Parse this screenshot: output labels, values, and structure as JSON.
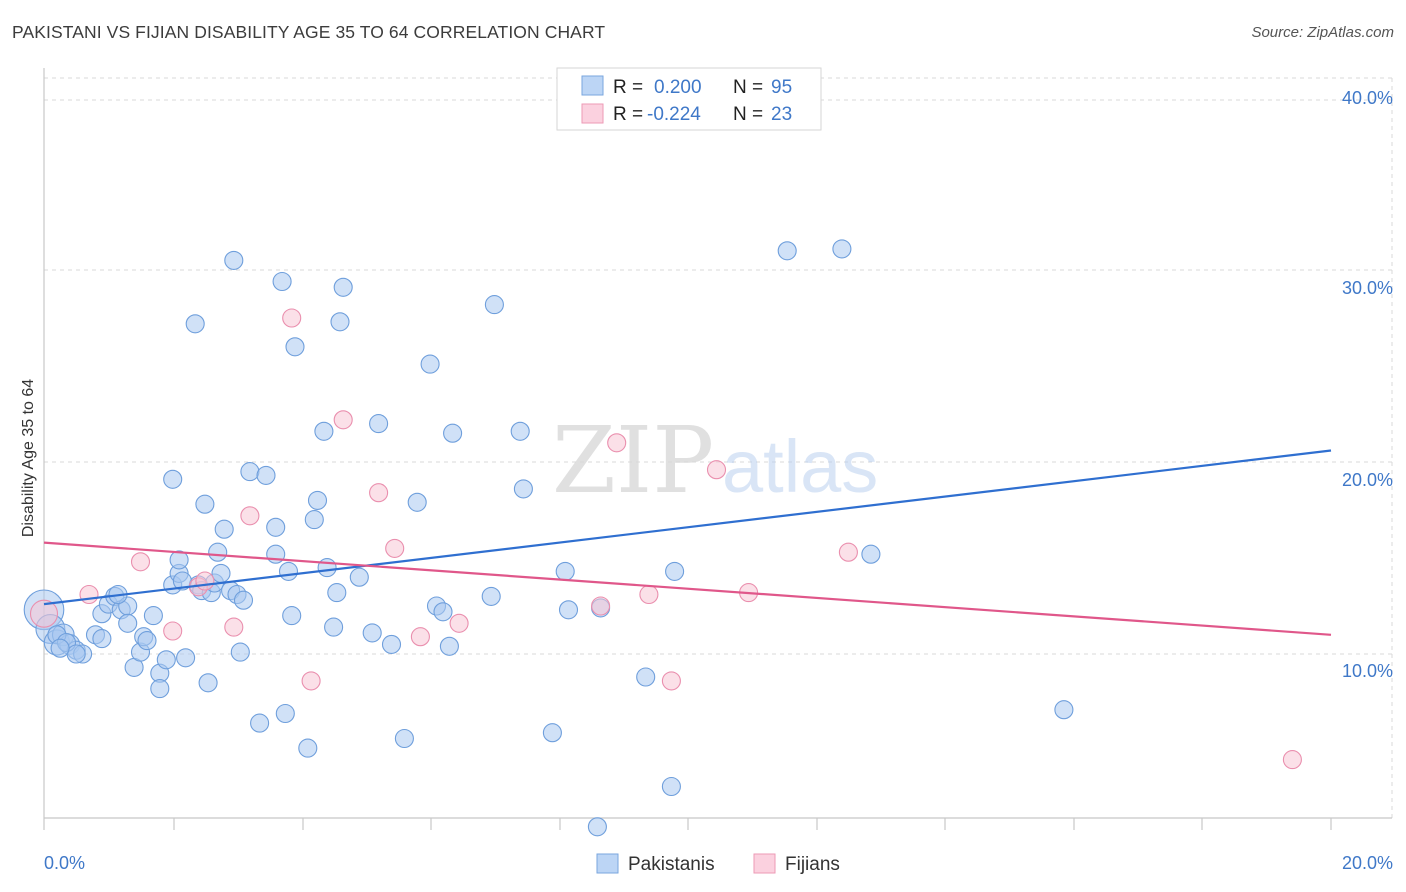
{
  "chart_data": {
    "type": "scatter",
    "title": "PAKISTANI VS FIJIAN DISABILITY AGE 35 TO 64 CORRELATION CHART",
    "source": "Source: ZipAtlas.com",
    "xlabel": "",
    "ylabel": "Disability Age 35 to 64",
    "xlim": [
      0,
      20
    ],
    "ylim": [
      0,
      42
    ],
    "x_tick_labels": [
      "0.0%",
      "20.0%"
    ],
    "y_ticks": [
      10,
      20,
      30,
      40
    ],
    "y_tick_labels": [
      "10.0%",
      "20.0%",
      "30.0%",
      "40.0%"
    ],
    "grid": true,
    "watermark": {
      "zip": "ZIP",
      "atlas": "atlas"
    },
    "legend": {
      "placement": "top-center",
      "entries": [
        {
          "r_label": "R =",
          "r_value": "0.200",
          "n_label": "N =",
          "n_value": "95"
        },
        {
          "r_label": "R =",
          "r_value": "-0.224",
          "n_label": "N =",
          "n_value": "23"
        }
      ]
    },
    "bottom_legend": [
      "Pakistanis",
      "Fijians"
    ],
    "series": [
      {
        "name": "Pakistanis",
        "color": "#a9c8f0",
        "edge": "#6f9fdc",
        "line_color": "#2f6fd0",
        "trend": {
          "x": [
            0,
            20
          ],
          "y": [
            12.6,
            20.6
          ]
        },
        "points": [
          {
            "x": 0.0,
            "y": 12.3,
            "s": 2.2
          },
          {
            "x": 0.1,
            "y": 11.3,
            "s": 1.6
          },
          {
            "x": 0.2,
            "y": 10.6,
            "s": 1.4
          },
          {
            "x": 0.3,
            "y": 11.0,
            "s": 1.2
          },
          {
            "x": 0.4,
            "y": 10.5,
            "s": 1.1
          },
          {
            "x": 0.5,
            "y": 10.2,
            "s": 1.0
          },
          {
            "x": 0.6,
            "y": 10.0,
            "s": 1.0
          },
          {
            "x": 0.2,
            "y": 11.0
          },
          {
            "x": 0.35,
            "y": 10.6
          },
          {
            "x": 0.5,
            "y": 10.0
          },
          {
            "x": 0.8,
            "y": 11.0
          },
          {
            "x": 0.9,
            "y": 10.8
          },
          {
            "x": 0.9,
            "y": 12.1
          },
          {
            "x": 1.0,
            "y": 12.6
          },
          {
            "x": 1.1,
            "y": 13.0
          },
          {
            "x": 1.2,
            "y": 12.3
          },
          {
            "x": 1.3,
            "y": 12.5
          },
          {
            "x": 1.3,
            "y": 11.6
          },
          {
            "x": 1.4,
            "y": 9.3
          },
          {
            "x": 1.5,
            "y": 10.1
          },
          {
            "x": 1.55,
            "y": 10.9
          },
          {
            "x": 1.6,
            "y": 10.7
          },
          {
            "x": 1.7,
            "y": 12.0
          },
          {
            "x": 1.8,
            "y": 9.0
          },
          {
            "x": 1.8,
            "y": 8.2
          },
          {
            "x": 1.9,
            "y": 9.7
          },
          {
            "x": 2.0,
            "y": 19.1
          },
          {
            "x": 2.0,
            "y": 13.6
          },
          {
            "x": 2.1,
            "y": 14.2
          },
          {
            "x": 2.1,
            "y": 14.9
          },
          {
            "x": 2.2,
            "y": 9.8
          },
          {
            "x": 2.35,
            "y": 27.2
          },
          {
            "x": 2.4,
            "y": 13.6
          },
          {
            "x": 2.45,
            "y": 13.3
          },
          {
            "x": 2.5,
            "y": 17.8
          },
          {
            "x": 2.55,
            "y": 8.5
          },
          {
            "x": 2.6,
            "y": 13.2
          },
          {
            "x": 2.65,
            "y": 13.7
          },
          {
            "x": 2.7,
            "y": 15.3
          },
          {
            "x": 2.75,
            "y": 14.2
          },
          {
            "x": 2.8,
            "y": 16.5
          },
          {
            "x": 2.9,
            "y": 13.3
          },
          {
            "x": 2.95,
            "y": 30.5
          },
          {
            "x": 3.0,
            "y": 13.1
          },
          {
            "x": 3.05,
            "y": 10.1
          },
          {
            "x": 3.1,
            "y": 12.8
          },
          {
            "x": 3.2,
            "y": 19.5
          },
          {
            "x": 3.35,
            "y": 6.4
          },
          {
            "x": 3.45,
            "y": 19.3
          },
          {
            "x": 3.6,
            "y": 15.2
          },
          {
            "x": 3.6,
            "y": 16.6
          },
          {
            "x": 3.7,
            "y": 29.4
          },
          {
            "x": 3.75,
            "y": 6.9
          },
          {
            "x": 3.8,
            "y": 14.3
          },
          {
            "x": 3.85,
            "y": 12.0
          },
          {
            "x": 3.9,
            "y": 26.0
          },
          {
            "x": 4.1,
            "y": 5.1
          },
          {
            "x": 4.2,
            "y": 17.0
          },
          {
            "x": 4.25,
            "y": 18.0
          },
          {
            "x": 4.35,
            "y": 21.6
          },
          {
            "x": 4.4,
            "y": 14.5
          },
          {
            "x": 4.5,
            "y": 11.4
          },
          {
            "x": 4.6,
            "y": 27.3
          },
          {
            "x": 4.65,
            "y": 29.1
          },
          {
            "x": 4.9,
            "y": 14.0
          },
          {
            "x": 5.1,
            "y": 11.1
          },
          {
            "x": 5.2,
            "y": 22.0
          },
          {
            "x": 5.4,
            "y": 10.5
          },
          {
            "x": 5.6,
            "y": 5.6
          },
          {
            "x": 5.8,
            "y": 17.9
          },
          {
            "x": 6.0,
            "y": 25.1
          },
          {
            "x": 6.1,
            "y": 12.5
          },
          {
            "x": 6.2,
            "y": 12.2
          },
          {
            "x": 6.3,
            "y": 10.4
          },
          {
            "x": 6.35,
            "y": 21.5
          },
          {
            "x": 7.0,
            "y": 28.2
          },
          {
            "x": 7.4,
            "y": 21.6
          },
          {
            "x": 7.45,
            "y": 18.6
          },
          {
            "x": 7.9,
            "y": 5.9
          },
          {
            "x": 8.1,
            "y": 14.3
          },
          {
            "x": 8.15,
            "y": 12.3
          },
          {
            "x": 8.6,
            "y": 1.0
          },
          {
            "x": 8.65,
            "y": 12.4
          },
          {
            "x": 9.35,
            "y": 8.8
          },
          {
            "x": 9.75,
            "y": 3.1
          },
          {
            "x": 9.8,
            "y": 14.3
          },
          {
            "x": 11.55,
            "y": 31.0
          },
          {
            "x": 12.4,
            "y": 31.1
          },
          {
            "x": 12.85,
            "y": 15.2
          },
          {
            "x": 15.85,
            "y": 7.1
          },
          {
            "x": 6.95,
            "y": 13.0
          },
          {
            "x": 0.25,
            "y": 10.3
          },
          {
            "x": 1.15,
            "y": 13.1
          },
          {
            "x": 2.15,
            "y": 13.8
          },
          {
            "x": 4.55,
            "y": 13.2
          }
        ]
      },
      {
        "name": "Fijians",
        "color": "#f8c6d6",
        "edge": "#ea8fae",
        "line_color": "#e0578a",
        "trend": {
          "x": [
            0,
            20
          ],
          "y": [
            15.8,
            11.0
          ]
        },
        "points": [
          {
            "x": 0.0,
            "y": 12.1,
            "s": 1.5
          },
          {
            "x": 0.7,
            "y": 13.1
          },
          {
            "x": 1.5,
            "y": 14.8
          },
          {
            "x": 2.0,
            "y": 11.2
          },
          {
            "x": 2.4,
            "y": 13.5
          },
          {
            "x": 2.5,
            "y": 13.8
          },
          {
            "x": 2.95,
            "y": 11.4
          },
          {
            "x": 3.2,
            "y": 17.2
          },
          {
            "x": 3.85,
            "y": 27.5
          },
          {
            "x": 4.15,
            "y": 8.6
          },
          {
            "x": 4.65,
            "y": 22.2
          },
          {
            "x": 5.2,
            "y": 18.4
          },
          {
            "x": 5.45,
            "y": 15.5
          },
          {
            "x": 5.85,
            "y": 10.9
          },
          {
            "x": 6.45,
            "y": 11.6
          },
          {
            "x": 8.65,
            "y": 12.5
          },
          {
            "x": 8.9,
            "y": 21.0
          },
          {
            "x": 9.4,
            "y": 13.1
          },
          {
            "x": 9.75,
            "y": 8.6
          },
          {
            "x": 10.45,
            "y": 19.6
          },
          {
            "x": 10.95,
            "y": 13.2
          },
          {
            "x": 12.5,
            "y": 15.3
          },
          {
            "x": 19.4,
            "y": 4.5
          }
        ]
      }
    ]
  }
}
